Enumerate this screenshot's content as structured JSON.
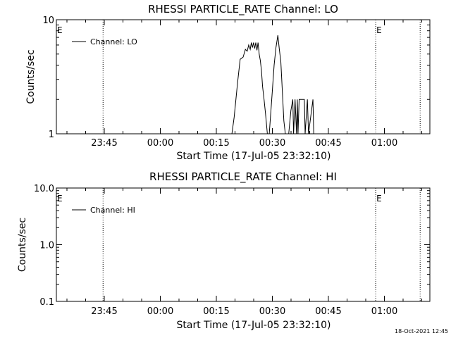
{
  "footer": {
    "timestamp": "18-Oct-2021 12:45"
  },
  "chart_data": [
    {
      "type": "line",
      "title": "RHESSI PARTICLE_RATE Channel: LO",
      "xlabel": "Start Time (17-Jul-05 23:32:10)",
      "ylabel": "Counts/sec",
      "yscale": "log",
      "ylim": [
        1,
        10
      ],
      "ytick_labels": [
        "1",
        "10"
      ],
      "ytick_values": [
        1,
        10
      ],
      "x_unit": "minutes after 23:32:10",
      "xlim": [
        0,
        100
      ],
      "xtick_labels": [
        "23:45",
        "00:00",
        "00:15",
        "00:30",
        "00:45",
        "01:00"
      ],
      "xtick_values": [
        12.83,
        27.83,
        42.83,
        57.83,
        72.83,
        87.83
      ],
      "markers": [
        {
          "label": "E",
          "x": 0
        },
        {
          "label": "E",
          "x": 85.5
        }
      ],
      "dotted_lines_x": [
        12.5,
        85.5,
        97.4
      ],
      "legend_position": "top-left",
      "series": [
        {
          "name": "Channel: LO",
          "x": [
            0,
            47,
            47.6,
            48.5,
            49.2,
            50.0,
            50.6,
            51.1,
            51.5,
            51.9,
            52.2,
            52.5,
            52.8,
            53.1,
            53.4,
            53.7,
            54.0,
            54.3,
            54.6,
            54.9,
            55.2,
            55.6,
            56.0,
            56.5,
            57.0,
            57.8,
            58.3,
            58.8,
            59.3,
            59.7,
            60.1,
            60.5,
            60.9,
            61.3,
            61.7,
            62.2,
            62.8,
            63.3,
            63.5,
            63.9,
            64.3,
            64.5,
            64.7,
            65.0,
            65.2,
            65.6,
            66.4,
            66.6,
            67.2,
            67.5,
            68.7,
            68.9,
            69.0,
            100
          ],
          "y": [
            1,
            1,
            1.4,
            2.8,
            4.5,
            4.7,
            5.5,
            5.3,
            6.0,
            5.5,
            6.3,
            5.7,
            6.3,
            5.6,
            6.3,
            5.4,
            6.3,
            5.0,
            4.4,
            3.6,
            2.6,
            2.0,
            1.5,
            1.0,
            1.0,
            2.3,
            4.0,
            5.7,
            7.3,
            5.5,
            4.3,
            2.4,
            1.3,
            1.0,
            1.0,
            1.0,
            1.6,
            2.0,
            1.0,
            2.0,
            1.0,
            2.0,
            1.0,
            2.0,
            2.0,
            2.0,
            2.0,
            1.0,
            2.0,
            1.0,
            2.0,
            1.0,
            1.0,
            1.0
          ]
        }
      ]
    },
    {
      "type": "line",
      "title": "RHESSI PARTICLE_RATE Channel: HI",
      "xlabel": "Start Time (17-Jul-05 23:32:10)",
      "ylabel": "Counts/sec",
      "yscale": "log",
      "ylim": [
        0.1,
        10
      ],
      "ytick_labels": [
        "0.1",
        "1.0",
        "10.0"
      ],
      "ytick_values": [
        0.1,
        1,
        10
      ],
      "x_unit": "minutes after 23:32:10",
      "xlim": [
        0,
        100
      ],
      "xtick_labels": [
        "23:45",
        "00:00",
        "00:15",
        "00:30",
        "00:45",
        "01:00"
      ],
      "xtick_values": [
        12.83,
        27.83,
        42.83,
        57.83,
        72.83,
        87.83
      ],
      "markers": [
        {
          "label": "E",
          "x": 0
        },
        {
          "label": "E",
          "x": 85.5
        }
      ],
      "dotted_lines_x": [
        12.5,
        85.5,
        97.4
      ],
      "legend_position": "top-left",
      "series": [
        {
          "name": "Channel: HI",
          "x": [],
          "y": []
        }
      ]
    }
  ]
}
